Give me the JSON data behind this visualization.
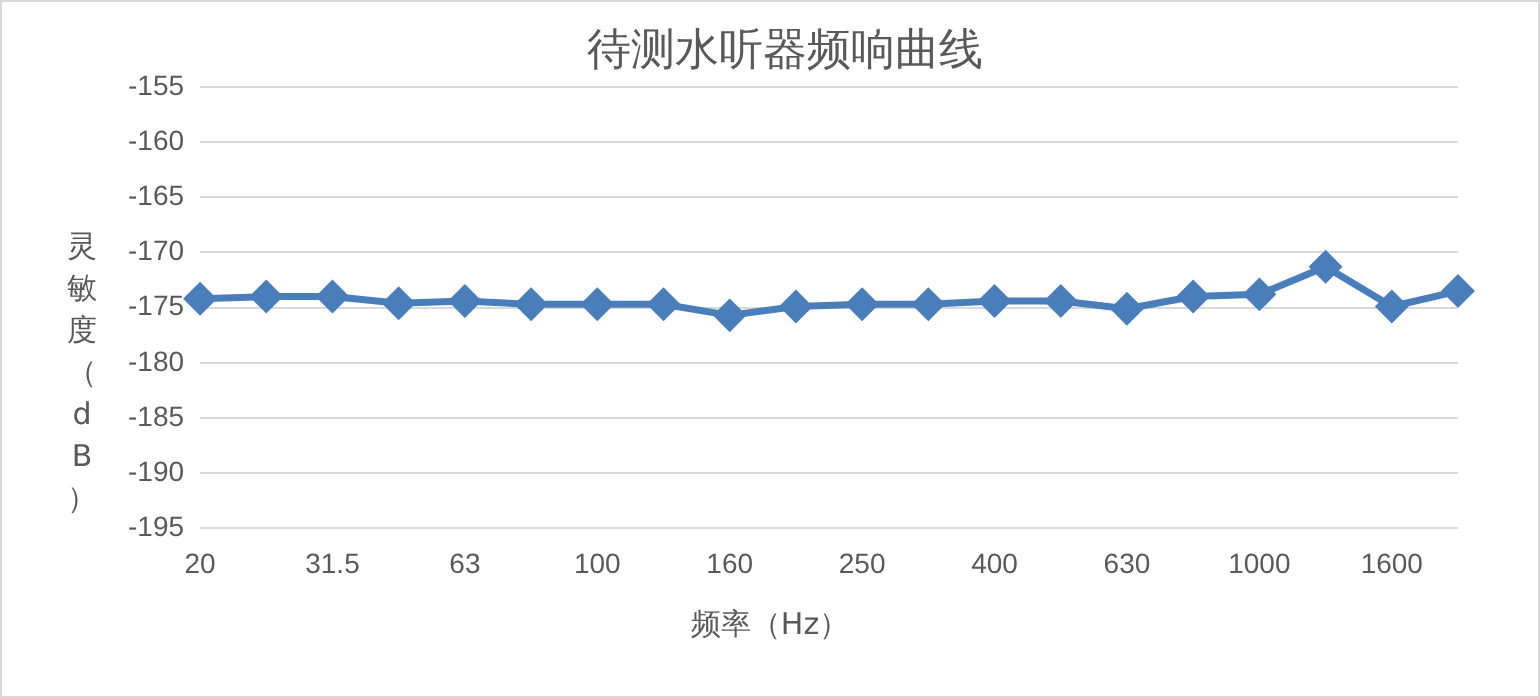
{
  "chart_data": {
    "type": "line",
    "title": "待测水听器频响曲线",
    "xlabel": "频率（Hz）",
    "ylabel": "灵敏度（dB）",
    "categories": [
      "20",
      null,
      "31.5",
      null,
      "63",
      null,
      "100",
      null,
      "160",
      null,
      "250",
      null,
      "400",
      null,
      "630",
      null,
      "1000",
      null,
      "1600",
      null
    ],
    "series": [
      {
        "color": "#4a7ebb",
        "values": [
          -174.2,
          -174.0,
          -174.0,
          -174.6,
          -174.4,
          -174.7,
          -174.7,
          -174.7,
          -175.7,
          -174.9,
          -174.7,
          -174.7,
          -174.4,
          -174.4,
          -175.1,
          -174.0,
          -173.8,
          -171.3,
          -174.9,
          -173.5
        ]
      }
    ],
    "ylim": [
      -195,
      -155
    ],
    "yticks": [
      -155,
      -160,
      -165,
      -170,
      -175,
      -180,
      -185,
      -190,
      -195
    ],
    "grid": "y",
    "legend": false,
    "marker": "diamond",
    "line_style": "solid"
  }
}
